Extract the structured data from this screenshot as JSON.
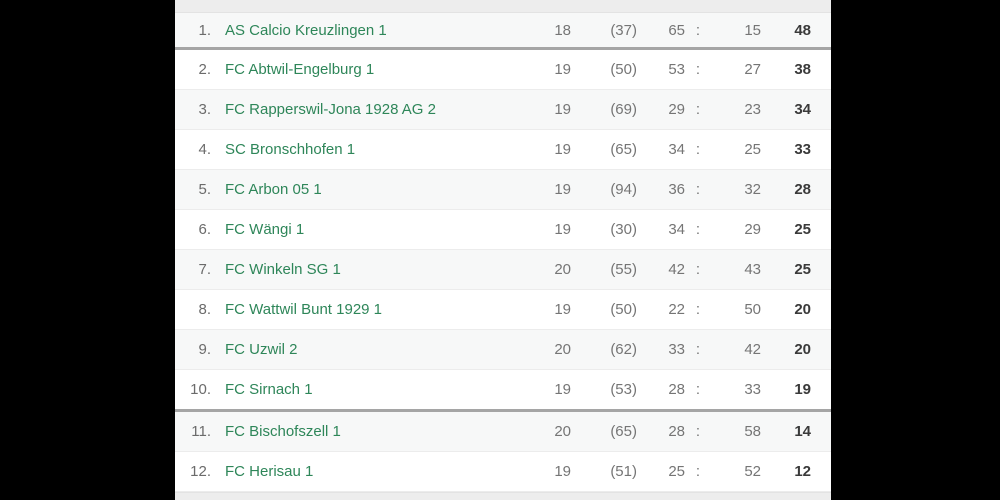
{
  "colors": {
    "team_link_green": "#2e8659",
    "row_alt_bg": "#f7f8f8",
    "strip_bg": "#ededed",
    "divider_gray": "#a5a5a5",
    "number_gray": "#757575",
    "points_dark": "#3a3a3a",
    "side_bg": "#000000"
  },
  "table": {
    "colon": ":",
    "dividers_after": [
      0,
      9
    ],
    "rows": [
      {
        "rank": "1.",
        "team": "AS Calcio Kreuzlingen 1",
        "games": "18",
        "paren": "(37)",
        "gf": "65",
        "ga": "15",
        "points": "48"
      },
      {
        "rank": "2.",
        "team": "FC Abtwil-Engelburg 1",
        "games": "19",
        "paren": "(50)",
        "gf": "53",
        "ga": "27",
        "points": "38"
      },
      {
        "rank": "3.",
        "team": "FC Rapperswil-Jona 1928 AG 2",
        "games": "19",
        "paren": "(69)",
        "gf": "29",
        "ga": "23",
        "points": "34"
      },
      {
        "rank": "4.",
        "team": "SC Bronschhofen 1",
        "games": "19",
        "paren": "(65)",
        "gf": "34",
        "ga": "25",
        "points": "33"
      },
      {
        "rank": "5.",
        "team": "FC Arbon 05 1",
        "games": "19",
        "paren": "(94)",
        "gf": "36",
        "ga": "32",
        "points": "28"
      },
      {
        "rank": "6.",
        "team": "FC Wängi 1",
        "games": "19",
        "paren": "(30)",
        "gf": "34",
        "ga": "29",
        "points": "25"
      },
      {
        "rank": "7.",
        "team": "FC Winkeln SG 1",
        "games": "20",
        "paren": "(55)",
        "gf": "42",
        "ga": "43",
        "points": "25"
      },
      {
        "rank": "8.",
        "team": "FC Wattwil Bunt 1929 1",
        "games": "19",
        "paren": "(50)",
        "gf": "22",
        "ga": "50",
        "points": "20"
      },
      {
        "rank": "9.",
        "team": "FC Uzwil 2",
        "games": "20",
        "paren": "(62)",
        "gf": "33",
        "ga": "42",
        "points": "20"
      },
      {
        "rank": "10.",
        "team": "FC Sirnach 1",
        "games": "19",
        "paren": "(53)",
        "gf": "28",
        "ga": "33",
        "points": "19"
      },
      {
        "rank": "11.",
        "team": "FC Bischofszell 1",
        "games": "20",
        "paren": "(65)",
        "gf": "28",
        "ga": "58",
        "points": "14"
      },
      {
        "rank": "12.",
        "team": "FC Herisau 1",
        "games": "19",
        "paren": "(51)",
        "gf": "25",
        "ga": "52",
        "points": "12"
      }
    ]
  }
}
